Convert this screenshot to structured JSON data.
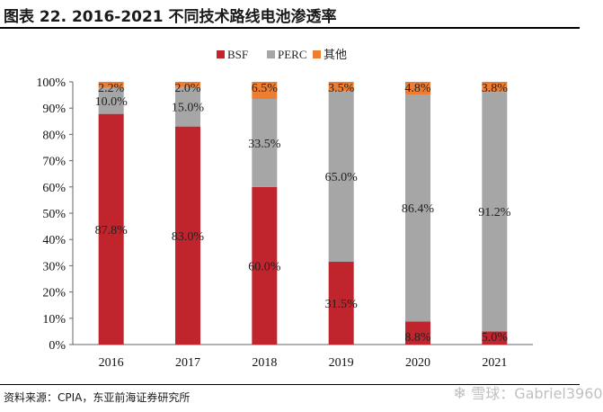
{
  "title": "图表 22. 2016-2021 不同技术路线电池渗透率",
  "source": "资料来源：CPIA，东亚前海证券研究所",
  "watermark": "雪球：Gabriel3960",
  "colors": {
    "BSF": "#C0242D",
    "PERC": "#A6A6A6",
    "其他": "#ED7D31"
  },
  "chart_data": {
    "type": "bar",
    "stacked": true,
    "categories": [
      "2016",
      "2017",
      "2018",
      "2019",
      "2020",
      "2021"
    ],
    "series": [
      {
        "name": "BSF",
        "values": [
          87.8,
          83.0,
          60.0,
          31.5,
          8.8,
          5.0
        ],
        "labels": [
          "87.8%",
          "83.0%",
          "60.0%",
          "31.5%",
          "8.8%",
          "5.0%"
        ]
      },
      {
        "name": "PERC",
        "values": [
          10.0,
          15.0,
          33.5,
          65.0,
          86.4,
          91.2
        ],
        "labels": [
          "10.0%",
          "15.0%",
          "33.5%",
          "65.0%",
          "86.4%",
          "91.2%"
        ]
      },
      {
        "name": "其他",
        "values": [
          2.2,
          2.0,
          6.5,
          3.5,
          4.8,
          3.8
        ],
        "labels": [
          "2.2%",
          "2.0%",
          "6.5%",
          "3.5%",
          "4.8%",
          "3.8%"
        ]
      }
    ],
    "ylim": [
      0,
      100
    ],
    "yticks": [
      "0%",
      "10%",
      "20%",
      "30%",
      "40%",
      "50%",
      "60%",
      "70%",
      "80%",
      "90%",
      "100%"
    ],
    "legend": "top-center",
    "grid": false
  }
}
